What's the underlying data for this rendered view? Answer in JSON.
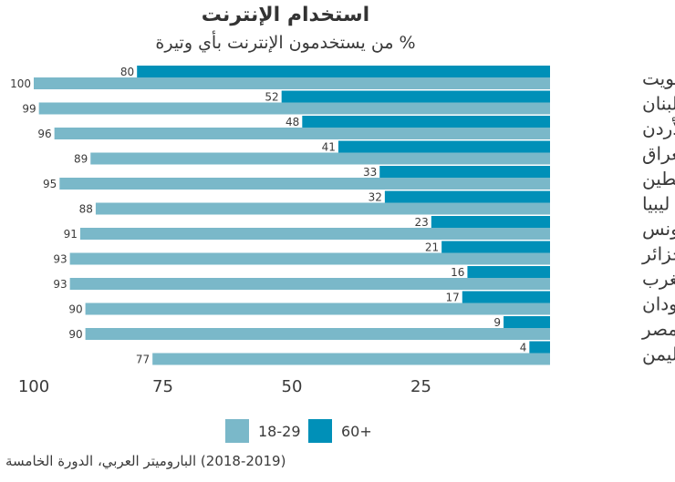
{
  "title": "استخدام الإنترنت",
  "subtitle": "% من يستخدمون الإنترنت بأي وتيرة",
  "source": "(2018-2019) الباروميتر العربي، الدورة الخامسة",
  "colors": {
    "young": "#7ab8c9",
    "older": "#0090b8",
    "text": "#3a3a3a"
  },
  "legend": [
    {
      "label": "18-29",
      "color": "#7ab8c9"
    },
    {
      "label": "60+",
      "color": "#0090b8"
    }
  ],
  "chart_data": {
    "type": "bar",
    "orientation": "horizontal",
    "x_reversed": true,
    "xlim": [
      0,
      100
    ],
    "xticks": [
      "100",
      "75",
      "50",
      "25"
    ],
    "xtick_values": [
      100,
      75,
      50,
      25
    ],
    "categories": [
      "الكويت",
      "لبنان",
      "الأردن",
      "العراق",
      "فلسطين",
      "ليبيا",
      "تونس",
      "الجزائر",
      "المغرب",
      "السودان",
      "مصر",
      "اليمن"
    ],
    "series": [
      {
        "name": "60+",
        "values": [
          80,
          52,
          48,
          41,
          33,
          32,
          23,
          21,
          16,
          17,
          9,
          4
        ]
      },
      {
        "name": "18-29",
        "values": [
          100,
          99,
          96,
          89,
          95,
          88,
          91,
          93,
          93,
          90,
          90,
          77
        ]
      }
    ],
    "grid": false,
    "legend_position": "bottom"
  }
}
